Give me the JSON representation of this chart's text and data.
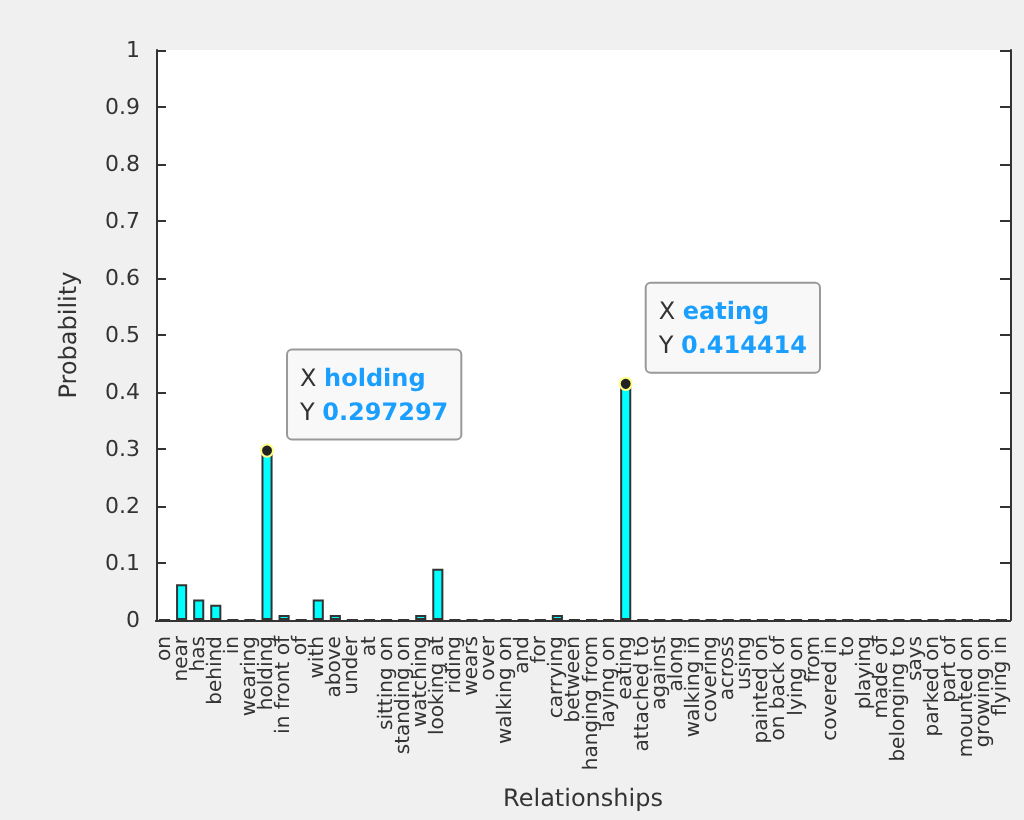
{
  "chart_data": {
    "type": "bar",
    "xlabel": "Relationships",
    "ylabel": "Probability",
    "categories": [
      "on",
      "near",
      "has",
      "behind",
      "in",
      "wearing",
      "holding",
      "in front of",
      "of",
      "with",
      "above",
      "under",
      "at",
      "sitting on",
      "standing on",
      "watching",
      "looking at",
      "riding",
      "wears",
      "over",
      "walking on",
      "and",
      "for",
      "carrying",
      "between",
      "hanging from",
      "laying on",
      "eating",
      "attached to",
      "against",
      "along",
      "walking in",
      "covering",
      "across",
      "using",
      "painted on",
      "on back of",
      "lying on",
      "from",
      "covered in",
      "to",
      "playing",
      "made of",
      "belonging to",
      "says",
      "parked on",
      "part of",
      "mounted on",
      "growing on",
      "flying in"
    ],
    "values": [
      0,
      0.063,
      0.036,
      0.027,
      0,
      0,
      0.297297,
      0.009,
      0,
      0.036,
      0.009,
      0,
      0,
      0,
      0,
      0.009,
      0.09,
      0,
      0,
      0,
      0,
      0,
      0,
      0.009,
      0,
      0,
      0,
      0.414414,
      0,
      0,
      0,
      0,
      0,
      0,
      0,
      0,
      0,
      0,
      0,
      0,
      0,
      0,
      0,
      0,
      0,
      0,
      0,
      0,
      0,
      0
    ],
    "color": "#00ffff",
    "ylim": [
      0,
      1
    ],
    "yticks": [
      0,
      0.1,
      0.2,
      0.3,
      0.4,
      0.5,
      0.6,
      0.7,
      0.8,
      0.9,
      1
    ],
    "grid": false,
    "annotations": [
      {
        "text": "X holding\nY 0.297297",
        "x": "holding",
        "y": 0.297297
      },
      {
        "text": "X eating\nY 0.414414",
        "x": "eating",
        "y": 0.414414
      }
    ]
  }
}
